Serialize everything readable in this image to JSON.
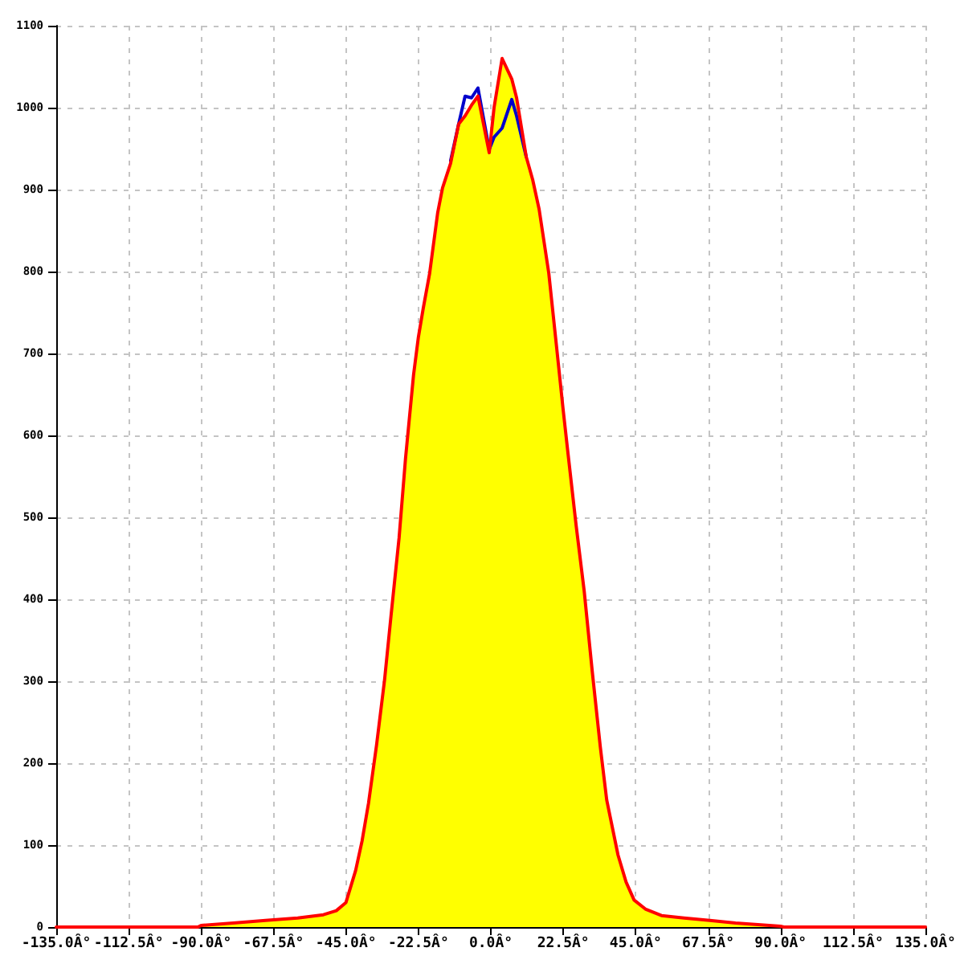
{
  "chart_data": {
    "type": "line",
    "xlim": [
      -135,
      135
    ],
    "xticks": [
      {
        "value": -135,
        "label": "-135.0Â°"
      },
      {
        "value": -112.5,
        "label": "-112.5Â°"
      },
      {
        "value": -90,
        "label": "-90.0Â°"
      },
      {
        "value": -67.5,
        "label": "-67.5Â°"
      },
      {
        "value": -45,
        "label": "-45.0Â°"
      },
      {
        "value": -22.5,
        "label": "-22.5Â°"
      },
      {
        "value": 0,
        "label": "0.0Â°"
      },
      {
        "value": 22.5,
        "label": "22.5Â°"
      },
      {
        "value": 45,
        "label": "45.0Â°"
      },
      {
        "value": 67.5,
        "label": "67.5Â°"
      },
      {
        "value": 90,
        "label": "90.0Â°"
      },
      {
        "value": 112.5,
        "label": "112.5Â°"
      },
      {
        "value": 135,
        "label": "135.0Â°"
      }
    ],
    "ylim": [
      0,
      1100
    ],
    "yticks": [
      0,
      100,
      200,
      300,
      400,
      500,
      600,
      700,
      800,
      900,
      1000,
      1100
    ],
    "grid": true,
    "marker": "none",
    "line_style": "solid",
    "series": [
      {
        "type": "area",
        "color": "#ffff00",
        "x": [
          -90,
          -80,
          -70,
          -60,
          -52,
          -48,
          -45,
          -42,
          -40,
          -38,
          -35.5,
          -33,
          -31,
          -28.5,
          -26.5,
          -24,
          -22.5,
          -21,
          -19,
          -16.5,
          -15,
          -12.5,
          -10,
          -8,
          -6,
          -4,
          -0.5,
          1,
          3.5,
          6.5,
          8,
          11,
          13,
          15,
          18,
          20.5,
          22.5,
          24,
          26.5,
          29,
          31.5,
          34,
          36,
          39.5,
          42,
          44.5,
          48,
          53,
          60,
          68,
          76,
          83,
          90
        ],
        "values": [
          2,
          5,
          8,
          11,
          15,
          20,
          30,
          69,
          105,
          151,
          222,
          302,
          380,
          475,
          572,
          674,
          720,
          755,
          798,
          872,
          902,
          932,
          980,
          990,
          1003,
          1014,
          945,
          1000,
          1060,
          1035,
          1012,
          940,
          912,
          876,
          798,
          705,
          630,
          577,
          490,
          410,
          312,
          220,
          155,
          88,
          55,
          33,
          22,
          14,
          11,
          8,
          5,
          3,
          1
        ]
      },
      {
        "color": "#0000cc",
        "x": [
          -12.5,
          -10,
          -8,
          -6,
          -4,
          -0.5,
          1,
          3.5,
          6.5,
          8,
          11
        ],
        "values": [
          935,
          980,
          1014,
          1012,
          1024,
          949,
          964,
          975,
          1010,
          990,
          940
        ]
      },
      {
        "color": "#ff0000",
        "x": [
          -135,
          -91,
          -90,
          -80,
          -70,
          -60,
          -52,
          -48,
          -45,
          -42,
          -40,
          -38,
          -35.5,
          -33,
          -31,
          -28.5,
          -26.5,
          -24,
          -22.5,
          -21,
          -19,
          -16.5,
          -15,
          -12.5,
          -10,
          -8,
          -6,
          -4,
          -0.5,
          1,
          3.5,
          6.5,
          8,
          11,
          13,
          15,
          18,
          20.5,
          22.5,
          24,
          26.5,
          29,
          31.5,
          34,
          36,
          39.5,
          42,
          44.5,
          48,
          53,
          60,
          68,
          76,
          83,
          90,
          91,
          135
        ],
        "values": [
          0,
          0,
          2,
          5,
          8,
          11,
          15,
          20,
          30,
          69,
          105,
          151,
          222,
          302,
          380,
          475,
          572,
          674,
          720,
          755,
          798,
          872,
          902,
          932,
          980,
          990,
          1003,
          1014,
          945,
          1000,
          1060,
          1035,
          1012,
          940,
          912,
          876,
          798,
          705,
          630,
          577,
          490,
          410,
          312,
          220,
          155,
          88,
          55,
          33,
          22,
          14,
          11,
          8,
          5,
          3,
          1,
          0,
          0
        ]
      }
    ]
  }
}
